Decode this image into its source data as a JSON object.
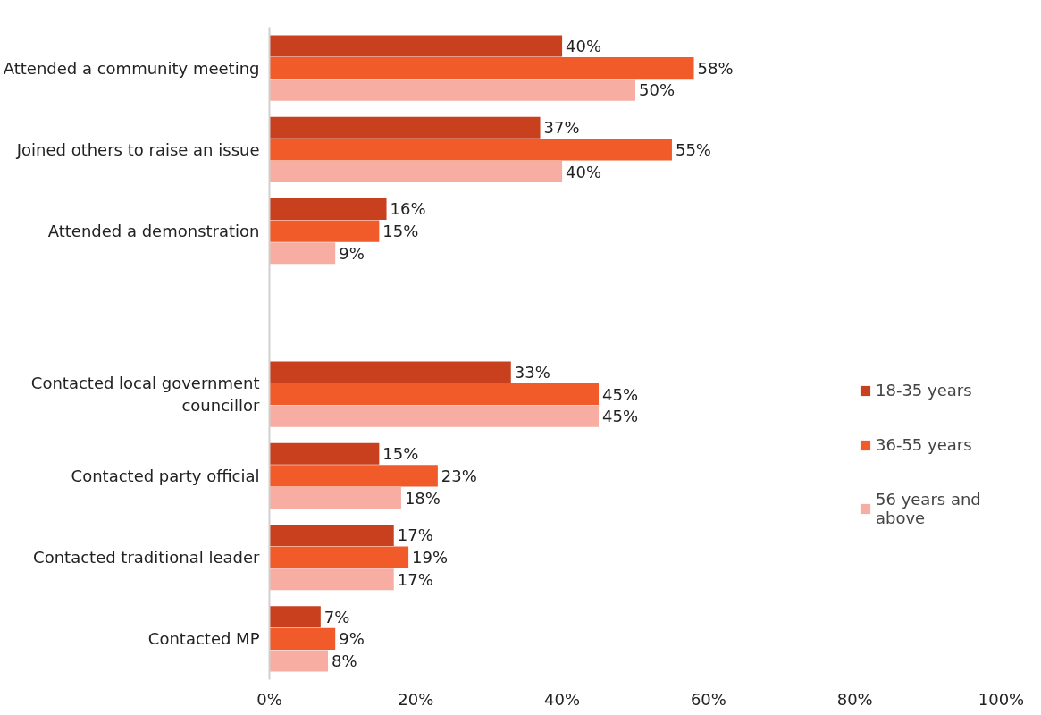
{
  "chart_data": {
    "type": "bar",
    "orientation": "horizontal",
    "categories": [
      "Attended a community meeting",
      "Joined others to raise an issue",
      "Attended a demonstration",
      null,
      "Contacted local government councillor",
      "Contacted party official",
      "Contacted traditional leader",
      "Contacted MP"
    ],
    "series": [
      {
        "name": "18-35 years",
        "color": "#c8401e",
        "values": [
          40,
          37,
          16,
          null,
          33,
          15,
          17,
          7
        ],
        "value_labels": [
          "40%",
          "37%",
          "16%",
          null,
          "33%",
          "15%",
          "17%",
          "7%"
        ]
      },
      {
        "name": "36-55 years",
        "color": "#f15a29",
        "values": [
          58,
          55,
          15,
          null,
          45,
          23,
          19,
          9
        ],
        "value_labels": [
          "58%",
          "55%",
          "15%",
          null,
          "45%",
          "23%",
          "19%",
          "9%"
        ]
      },
      {
        "name": "56 years and above",
        "color": "#f8ada2",
        "values": [
          50,
          40,
          9,
          null,
          45,
          18,
          17,
          8
        ],
        "value_labels": [
          "50%",
          "40%",
          "9%",
          null,
          "45%",
          "18%",
          "17%",
          "8%"
        ]
      }
    ],
    "xlim": [
      0,
      100
    ],
    "xticks": [
      {
        "value": 0,
        "label": "0%"
      },
      {
        "value": 20,
        "label": "20%"
      },
      {
        "value": 40,
        "label": "40%"
      },
      {
        "value": 60,
        "label": "60%"
      },
      {
        "value": 80,
        "label": "80%"
      },
      {
        "value": 100,
        "label": "100%"
      }
    ],
    "grid": false,
    "legend": "right"
  }
}
